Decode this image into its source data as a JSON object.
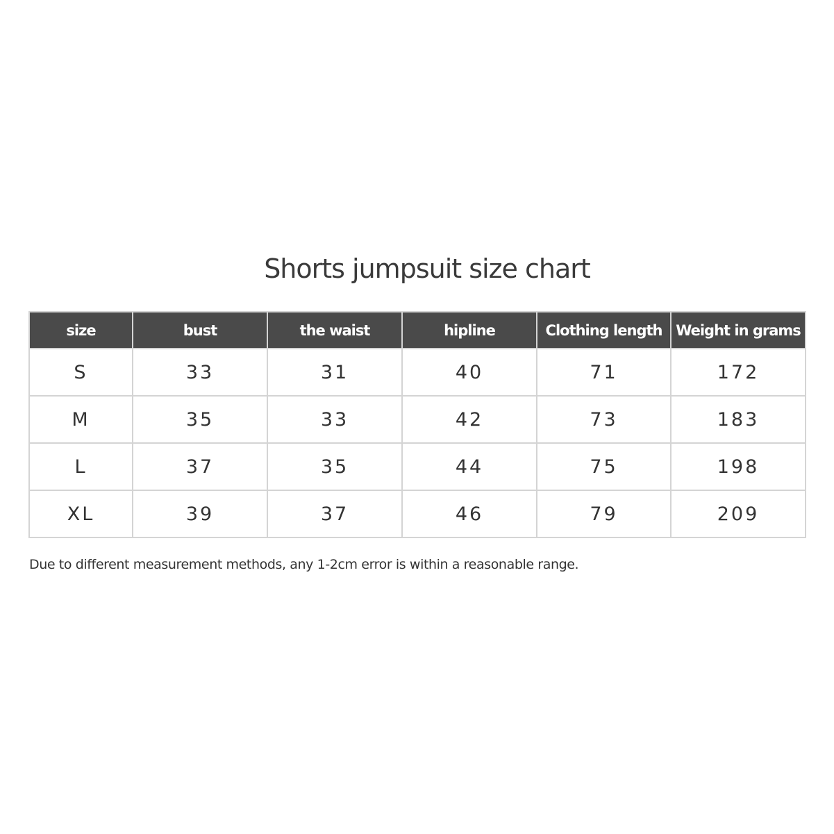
{
  "title": "Shorts jumpsuit size chart",
  "table": {
    "headers": [
      "size",
      "bust",
      "the waist",
      "hipline",
      "Clothing length",
      "Weight in grams"
    ],
    "rows": [
      [
        "S",
        "33",
        "31",
        "40",
        "71",
        "172"
      ],
      [
        "M",
        "35",
        "33",
        "42",
        "73",
        "183"
      ],
      [
        "L",
        "37",
        "35",
        "44",
        "75",
        "198"
      ],
      [
        "XL",
        "39",
        "37",
        "46",
        "79",
        "209"
      ]
    ]
  },
  "note": "Due to different measurement methods, any 1-2cm error is within a reasonable range.",
  "colors": {
    "header_bg": "#4a4a4a",
    "header_text": "#ffffff",
    "border": "#d4d4d4"
  }
}
